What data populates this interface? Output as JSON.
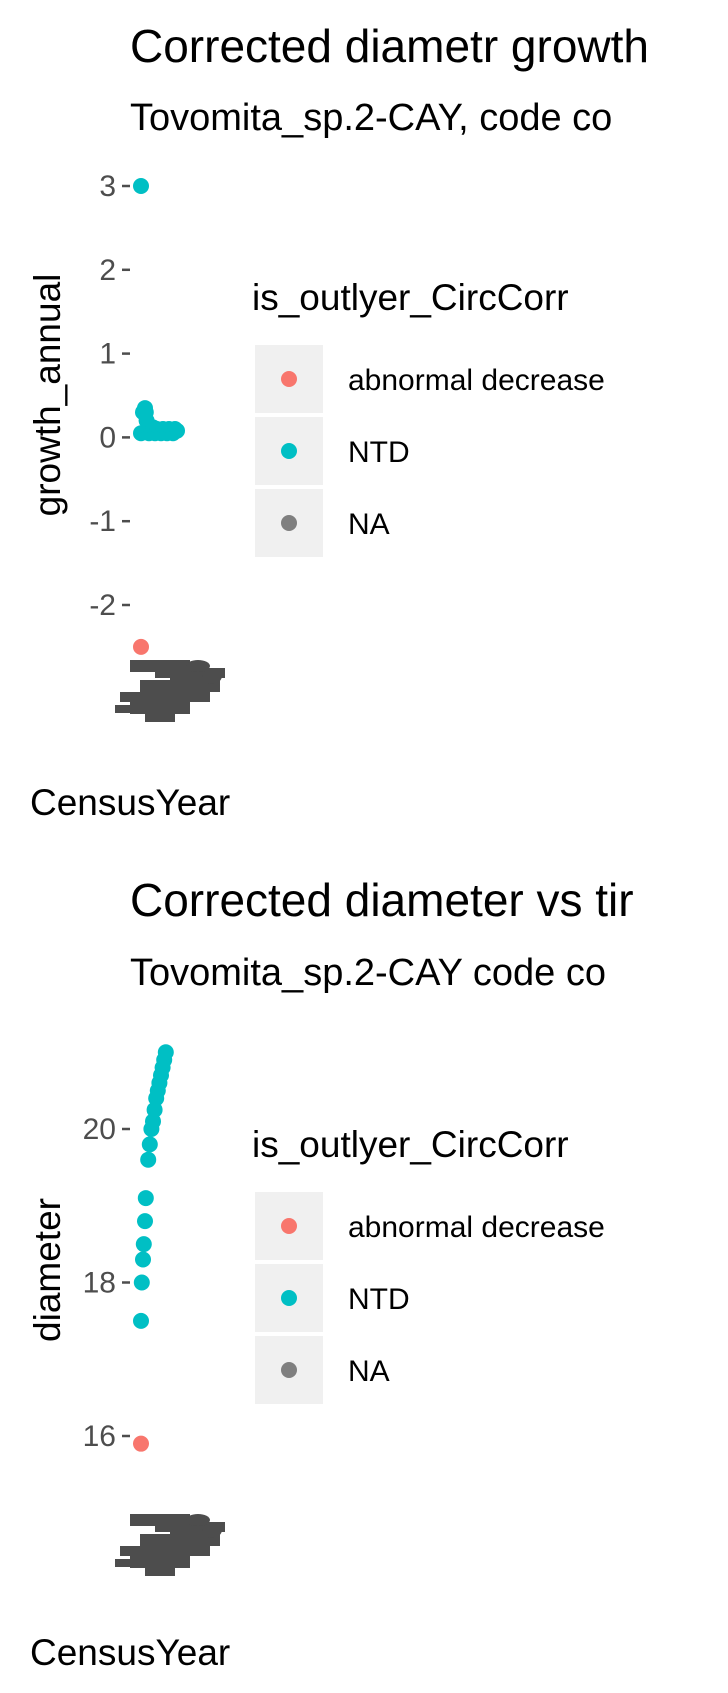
{
  "colors": {
    "abnormal_decrease": "#F8766D",
    "NTD": "#00BFC4",
    "NA": "#7F7F7F",
    "legend_key_bg": "#F0F0F0",
    "tick": "#4d4d4d",
    "overlap_labels": "#4d4d4d"
  },
  "chart_data": [
    {
      "type": "scatter",
      "title": "Corrected diametr growth",
      "subtitle": "Tovomita_sp.2-CAY, code co",
      "xlabel": "CensusYear",
      "ylabel": "growth_annual",
      "ylim": [
        -2.6,
        3.3
      ],
      "y_ticks": [
        "3",
        "2",
        "1",
        "0",
        "-1",
        "-2"
      ],
      "y_tick_values": [
        3,
        2,
        1,
        0,
        -1,
        -2
      ],
      "grid": false,
      "x_tick_labels": "overlapping, illegible",
      "legend": {
        "title": "is_outlyer_CircCorr",
        "position": "right",
        "entries": [
          "abnormal decrease",
          "NTD",
          "NA"
        ]
      },
      "series": [
        {
          "name": "NTD",
          "points": [
            [
              0,
              3.0
            ],
            [
              0,
              0.05
            ],
            [
              0.05,
              0.3
            ],
            [
              0.1,
              0.35
            ],
            [
              0.12,
              0.3
            ],
            [
              0.14,
              0.2
            ],
            [
              0.16,
              0.1
            ],
            [
              0.2,
              0.05
            ],
            [
              0.25,
              0.08
            ],
            [
              0.3,
              0.12
            ],
            [
              0.35,
              0.05
            ],
            [
              0.4,
              0.1
            ],
            [
              0.45,
              0.08
            ],
            [
              0.5,
              0.05
            ],
            [
              0.55,
              0.1
            ],
            [
              0.6,
              0.08
            ],
            [
              0.65,
              0.05
            ],
            [
              0.7,
              0.1
            ],
            [
              0.75,
              0.08
            ],
            [
              0.8,
              0.05
            ],
            [
              0.85,
              0.1
            ],
            [
              0.9,
              0.08
            ]
          ]
        },
        {
          "name": "abnormal decrease",
          "points": [
            [
              0,
              -2.5
            ]
          ]
        }
      ]
    },
    {
      "type": "scatter",
      "title": "Corrected diameter vs tir",
      "subtitle": "Tovomita_sp.2-CAY code co",
      "xlabel": "CensusYear",
      "ylabel": "diameter",
      "ylim": [
        15.7,
        21.3
      ],
      "y_ticks": [
        "20",
        "18",
        "16"
      ],
      "y_tick_values": [
        20,
        18,
        16
      ],
      "grid": false,
      "x_tick_labels": "overlapping, illegible",
      "legend": {
        "title": "is_outlyer_CircCorr",
        "position": "right",
        "entries": [
          "abnormal decrease",
          "NTD",
          "NA"
        ]
      },
      "series": [
        {
          "name": "NTD",
          "points": [
            [
              0,
              17.5
            ],
            [
              0.02,
              18.0
            ],
            [
              0.05,
              18.3
            ],
            [
              0.07,
              18.5
            ],
            [
              0.1,
              18.8
            ],
            [
              0.12,
              19.1
            ],
            [
              0.18,
              19.6
            ],
            [
              0.22,
              19.8
            ],
            [
              0.26,
              20.0
            ],
            [
              0.3,
              20.1
            ],
            [
              0.34,
              20.25
            ],
            [
              0.38,
              20.4
            ],
            [
              0.42,
              20.5
            ],
            [
              0.46,
              20.6
            ],
            [
              0.5,
              20.7
            ],
            [
              0.54,
              20.8
            ],
            [
              0.58,
              20.9
            ],
            [
              0.62,
              21.0
            ]
          ]
        },
        {
          "name": "abnormal decrease",
          "points": [
            [
              0,
              15.9
            ]
          ]
        }
      ]
    }
  ]
}
